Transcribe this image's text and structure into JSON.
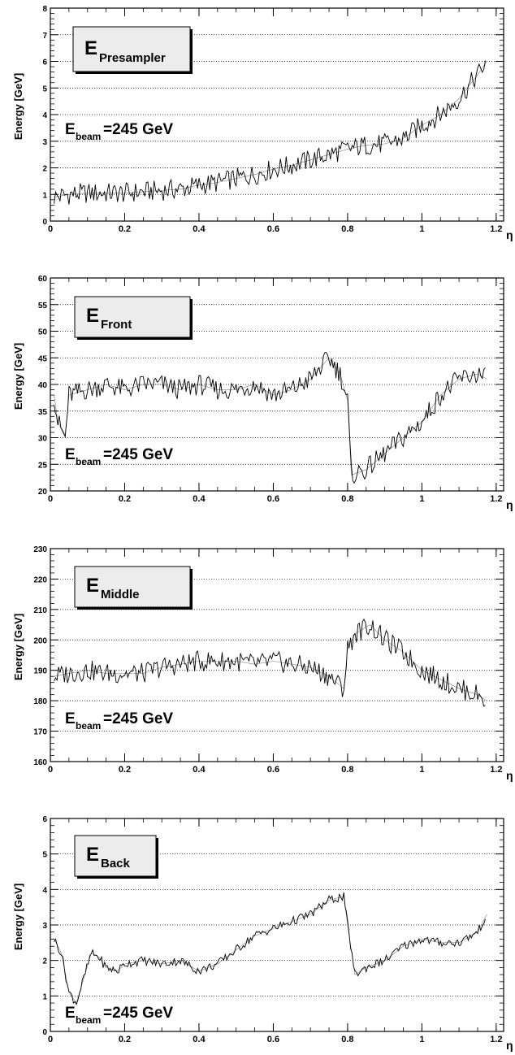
{
  "chart_data": [
    {
      "type": "line",
      "label_main": "E",
      "label_sub": "Presampler",
      "beam_main": "E",
      "beam_sub": "beam",
      "beam_rest": "=245 GeV",
      "ylabel": "Energy [GeV]",
      "xlabel": "η",
      "xlim": [
        0,
        1.22
      ],
      "ylim": [
        0,
        8
      ],
      "yticks": [
        "0",
        "1",
        "2",
        "3",
        "4",
        "5",
        "6",
        "7",
        "8"
      ],
      "xticks": [
        "0",
        "0.2",
        "0.4",
        "0.6",
        "0.8",
        "1",
        "1.2"
      ],
      "grid": "horizontal dotted",
      "x": [
        0.01,
        0.05,
        0.1,
        0.15,
        0.2,
        0.25,
        0.3,
        0.35,
        0.4,
        0.45,
        0.5,
        0.55,
        0.6,
        0.65,
        0.7,
        0.75,
        0.8,
        0.85,
        0.9,
        0.95,
        1.0,
        1.05,
        1.1,
        1.15,
        1.175
      ],
      "series": [
        {
          "values": [
            0.9,
            1.0,
            1.05,
            1.05,
            1.05,
            1.1,
            1.15,
            1.2,
            1.35,
            1.45,
            1.6,
            1.75,
            1.95,
            2.1,
            2.3,
            2.5,
            2.7,
            2.85,
            2.9,
            3.1,
            3.6,
            4.0,
            4.6,
            5.5,
            6.0
          ]
        }
      ]
    },
    {
      "type": "line",
      "label_main": "E",
      "label_sub": "Front",
      "beam_main": "E",
      "beam_sub": "beam",
      "beam_rest": "=245 GeV",
      "ylabel": "Energy [GeV]",
      "xlabel": "η",
      "xlim": [
        0,
        1.22
      ],
      "ylim": [
        20,
        60
      ],
      "yticks": [
        "20",
        "25",
        "30",
        "35",
        "40",
        "45",
        "50",
        "55",
        "60"
      ],
      "xticks": [
        "0",
        "0.2",
        "0.4",
        "0.6",
        "0.8",
        "1",
        "1.2"
      ],
      "grid": "horizontal dotted",
      "x": [
        0.01,
        0.02,
        0.04,
        0.05,
        0.1,
        0.15,
        0.2,
        0.25,
        0.3,
        0.35,
        0.4,
        0.45,
        0.5,
        0.55,
        0.6,
        0.65,
        0.7,
        0.75,
        0.78,
        0.8,
        0.81,
        0.85,
        0.9,
        0.95,
        1.0,
        1.05,
        1.1,
        1.15,
        1.175
      ],
      "series": [
        {
          "values": [
            38,
            33,
            30,
            38,
            39,
            40,
            39,
            40,
            40,
            39,
            40,
            39,
            39,
            40,
            38,
            39,
            41,
            45,
            42,
            37,
            23,
            24,
            27,
            30,
            33,
            38,
            41,
            42,
            41
          ]
        }
      ]
    },
    {
      "type": "line",
      "label_main": "E",
      "label_sub": "Middle",
      "beam_main": "E",
      "beam_sub": "beam",
      "beam_rest": "=245 GeV",
      "ylabel": "Energy [GeV]",
      "xlabel": "η",
      "xlim": [
        0,
        1.22
      ],
      "ylim": [
        160,
        230
      ],
      "yticks": [
        "160",
        "170",
        "180",
        "190",
        "200",
        "210",
        "220",
        "230"
      ],
      "xticks": [
        "0",
        "0.2",
        "0.4",
        "0.6",
        "0.8",
        "1",
        "1.2"
      ],
      "grid": "horizontal dotted",
      "x": [
        0.01,
        0.05,
        0.1,
        0.15,
        0.2,
        0.25,
        0.3,
        0.35,
        0.4,
        0.45,
        0.5,
        0.55,
        0.6,
        0.65,
        0.7,
        0.75,
        0.79,
        0.8,
        0.82,
        0.86,
        0.9,
        0.95,
        1.0,
        1.05,
        1.1,
        1.15,
        1.175
      ],
      "series": [
        {
          "values": [
            188,
            189,
            190,
            189,
            189,
            189,
            191,
            192,
            193,
            193,
            193,
            192,
            193,
            192,
            191,
            188,
            184,
            197,
            202,
            205,
            200,
            196,
            190,
            187,
            184,
            182,
            180
          ]
        }
      ]
    },
    {
      "type": "line",
      "label_main": "E",
      "label_sub": "Back",
      "beam_main": "E",
      "beam_sub": "beam",
      "beam_rest": "=245 GeV",
      "ylabel": "Energy [GeV]",
      "xlabel": "η",
      "xlim": [
        0,
        1.22
      ],
      "ylim": [
        0,
        6
      ],
      "yticks": [
        "0",
        "1",
        "2",
        "3",
        "4",
        "5",
        "6"
      ],
      "xticks": [
        "0",
        "0.2",
        "0.4",
        "0.6",
        "0.8",
        "1",
        "1.2"
      ],
      "grid": "horizontal dotted",
      "x": [
        0.01,
        0.03,
        0.05,
        0.07,
        0.09,
        0.11,
        0.13,
        0.15,
        0.18,
        0.2,
        0.25,
        0.3,
        0.35,
        0.4,
        0.45,
        0.5,
        0.55,
        0.6,
        0.65,
        0.7,
        0.75,
        0.79,
        0.8,
        0.82,
        0.85,
        0.9,
        0.95,
        1.0,
        1.05,
        1.1,
        1.15,
        1.175
      ],
      "series": [
        {
          "values": [
            2.6,
            2.2,
            1.1,
            0.8,
            1.5,
            2.2,
            2.1,
            1.8,
            1.7,
            1.9,
            2.0,
            1.9,
            2.0,
            1.7,
            1.9,
            2.3,
            2.7,
            2.9,
            3.1,
            3.3,
            3.7,
            3.8,
            3.0,
            1.6,
            1.8,
            2.0,
            2.4,
            2.6,
            2.5,
            2.5,
            2.8,
            3.3
          ]
        }
      ]
    }
  ]
}
